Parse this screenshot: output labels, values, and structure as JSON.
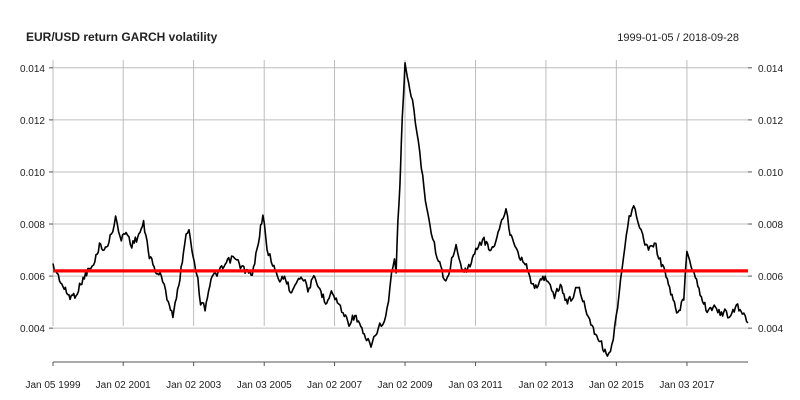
{
  "header": {
    "title": "EUR/USD return GARCH volatility",
    "date_range": "1999-01-05 / 2018-09-28"
  },
  "chart_data": {
    "type": "line",
    "title": "EUR/USD return GARCH volatility",
    "xlabel": "",
    "ylabel": "",
    "x_range": [
      "1999-01-05",
      "2018-09-28"
    ],
    "ylim": [
      0.0027,
      0.0143
    ],
    "grid": true,
    "legend": "none",
    "x_ticks": [
      {
        "date": "1999-01-05",
        "label": "Jan 05 1999"
      },
      {
        "date": "2001-01-02",
        "label": "Jan 02 2001"
      },
      {
        "date": "2003-01-02",
        "label": "Jan 02 2003"
      },
      {
        "date": "2005-01-03",
        "label": "Jan 03 2005"
      },
      {
        "date": "2007-01-02",
        "label": "Jan 02 2007"
      },
      {
        "date": "2009-01-02",
        "label": "Jan 02 2009"
      },
      {
        "date": "2011-01-03",
        "label": "Jan 03 2011"
      },
      {
        "date": "2013-01-02",
        "label": "Jan 02 2013"
      },
      {
        "date": "2015-01-02",
        "label": "Jan 02 2015"
      },
      {
        "date": "2017-01-03",
        "label": "Jan 03 2017"
      }
    ],
    "y_ticks": [
      {
        "value": 0.004,
        "label": "0.004"
      },
      {
        "value": 0.006,
        "label": "0.006"
      },
      {
        "value": 0.008,
        "label": "0.008"
      },
      {
        "value": 0.01,
        "label": "0.010"
      },
      {
        "value": 0.012,
        "label": "0.012"
      },
      {
        "value": 0.014,
        "label": "0.014"
      }
    ],
    "series": [
      {
        "color": "#000000",
        "points": [
          [
            "1999-01-05",
            0.0064
          ],
          [
            "1999-03-01",
            0.006
          ],
          [
            "1999-05-01",
            0.0055
          ],
          [
            "1999-07-01",
            0.0052
          ],
          [
            "1999-09-01",
            0.0053
          ],
          [
            "1999-11-01",
            0.0058
          ],
          [
            "2000-01-01",
            0.0062
          ],
          [
            "2000-03-01",
            0.0064
          ],
          [
            "2000-05-01",
            0.0072
          ],
          [
            "2000-07-01",
            0.007
          ],
          [
            "2000-09-01",
            0.0076
          ],
          [
            "2000-10-15",
            0.0083
          ],
          [
            "2000-12-01",
            0.0074
          ],
          [
            "2001-02-01",
            0.0077
          ],
          [
            "2001-04-01",
            0.0072
          ],
          [
            "2001-06-01",
            0.0075
          ],
          [
            "2001-08-01",
            0.008
          ],
          [
            "2001-10-01",
            0.0068
          ],
          [
            "2001-12-01",
            0.0062
          ],
          [
            "2002-02-01",
            0.006
          ],
          [
            "2002-04-01",
            0.0052
          ],
          [
            "2002-06-01",
            0.0045
          ],
          [
            "2002-08-01",
            0.0056
          ],
          [
            "2002-10-01",
            0.0073
          ],
          [
            "2002-11-15",
            0.0079
          ],
          [
            "2002-12-15",
            0.007
          ],
          [
            "2003-02-01",
            0.0062
          ],
          [
            "2003-03-15",
            0.005
          ],
          [
            "2003-05-01",
            0.0048
          ],
          [
            "2003-07-01",
            0.0059
          ],
          [
            "2003-09-01",
            0.0061
          ],
          [
            "2003-11-01",
            0.0063
          ],
          [
            "2004-01-01",
            0.0066
          ],
          [
            "2004-03-01",
            0.0067
          ],
          [
            "2004-05-01",
            0.0064
          ],
          [
            "2004-07-01",
            0.0062
          ],
          [
            "2004-09-01",
            0.006
          ],
          [
            "2004-11-15",
            0.0076
          ],
          [
            "2004-12-20",
            0.0084
          ],
          [
            "2005-02-01",
            0.007
          ],
          [
            "2005-04-01",
            0.0065
          ],
          [
            "2005-06-01",
            0.0058
          ],
          [
            "2005-08-01",
            0.006
          ],
          [
            "2005-10-01",
            0.0054
          ],
          [
            "2005-12-01",
            0.0058
          ],
          [
            "2006-02-01",
            0.006
          ],
          [
            "2006-04-01",
            0.0055
          ],
          [
            "2006-06-01",
            0.0059
          ],
          [
            "2006-08-01",
            0.0055
          ],
          [
            "2006-10-01",
            0.005
          ],
          [
            "2006-12-01",
            0.0054
          ],
          [
            "2007-02-01",
            0.005
          ],
          [
            "2007-04-01",
            0.0046
          ],
          [
            "2007-06-01",
            0.0042
          ],
          [
            "2007-08-01",
            0.0045
          ],
          [
            "2007-10-01",
            0.004
          ],
          [
            "2007-12-01",
            0.0035
          ],
          [
            "2008-01-15",
            0.0034
          ],
          [
            "2008-03-01",
            0.0037
          ],
          [
            "2008-04-15",
            0.0041
          ],
          [
            "2008-06-01",
            0.0042
          ],
          [
            "2008-07-15",
            0.005
          ],
          [
            "2008-08-15",
            0.006
          ],
          [
            "2008-09-15",
            0.0066
          ],
          [
            "2008-10-01",
            0.0062
          ],
          [
            "2008-10-20",
            0.008
          ],
          [
            "2008-11-10",
            0.0095
          ],
          [
            "2008-11-25",
            0.0112
          ],
          [
            "2008-12-15",
            0.0128
          ],
          [
            "2009-01-02",
            0.0143
          ],
          [
            "2009-01-25",
            0.0136
          ],
          [
            "2009-02-20",
            0.0132
          ],
          [
            "2009-03-20",
            0.0128
          ],
          [
            "2009-04-20",
            0.0118
          ],
          [
            "2009-05-20",
            0.0112
          ],
          [
            "2009-06-20",
            0.0102
          ],
          [
            "2009-08-01",
            0.009
          ],
          [
            "2009-09-15",
            0.008
          ],
          [
            "2009-11-01",
            0.0072
          ],
          [
            "2009-12-15",
            0.0066
          ],
          [
            "2010-02-01",
            0.006
          ],
          [
            "2010-03-15",
            0.0059
          ],
          [
            "2010-05-01",
            0.0066
          ],
          [
            "2010-06-15",
            0.0071
          ],
          [
            "2010-08-01",
            0.0064
          ],
          [
            "2010-10-01",
            0.0062
          ],
          [
            "2010-12-01",
            0.0066
          ],
          [
            "2011-02-01",
            0.0072
          ],
          [
            "2011-04-01",
            0.0074
          ],
          [
            "2011-06-01",
            0.007
          ],
          [
            "2011-08-01",
            0.0073
          ],
          [
            "2011-10-01",
            0.0081
          ],
          [
            "2011-11-15",
            0.0086
          ],
          [
            "2011-12-15",
            0.0078
          ],
          [
            "2012-02-01",
            0.0074
          ],
          [
            "2012-04-01",
            0.0068
          ],
          [
            "2012-06-01",
            0.0065
          ],
          [
            "2012-08-01",
            0.0058
          ],
          [
            "2012-10-01",
            0.0055
          ],
          [
            "2012-12-01",
            0.006
          ],
          [
            "2013-02-01",
            0.0058
          ],
          [
            "2013-04-01",
            0.0052
          ],
          [
            "2013-06-01",
            0.0057
          ],
          [
            "2013-08-01",
            0.005
          ],
          [
            "2013-10-01",
            0.0052
          ],
          [
            "2013-12-01",
            0.0056
          ],
          [
            "2014-02-01",
            0.005
          ],
          [
            "2014-04-01",
            0.0043
          ],
          [
            "2014-06-01",
            0.0038
          ],
          [
            "2014-08-01",
            0.0034
          ],
          [
            "2014-10-01",
            0.0029
          ],
          [
            "2014-11-01",
            0.0032
          ],
          [
            "2014-12-01",
            0.0036
          ],
          [
            "2015-01-15",
            0.0048
          ],
          [
            "2015-02-15",
            0.0058
          ],
          [
            "2015-03-15",
            0.0066
          ],
          [
            "2015-04-15",
            0.0075
          ],
          [
            "2015-05-15",
            0.0082
          ],
          [
            "2015-07-01",
            0.0086
          ],
          [
            "2015-08-15",
            0.0082
          ],
          [
            "2015-10-01",
            0.0075
          ],
          [
            "2015-12-01",
            0.007
          ],
          [
            "2016-02-01",
            0.0073
          ],
          [
            "2016-04-01",
            0.0066
          ],
          [
            "2016-06-01",
            0.006
          ],
          [
            "2016-08-01",
            0.0052
          ],
          [
            "2016-10-01",
            0.0045
          ],
          [
            "2016-12-01",
            0.0052
          ],
          [
            "2017-01-03",
            0.007
          ],
          [
            "2017-02-01",
            0.0066
          ],
          [
            "2017-04-01",
            0.006
          ],
          [
            "2017-06-01",
            0.0052
          ],
          [
            "2017-08-01",
            0.0047
          ],
          [
            "2017-10-01",
            0.0048
          ],
          [
            "2017-12-01",
            0.0046
          ],
          [
            "2018-02-01",
            0.0046
          ],
          [
            "2018-04-01",
            0.0044
          ],
          [
            "2018-06-01",
            0.0049
          ],
          [
            "2018-08-01",
            0.0046
          ],
          [
            "2018-09-28",
            0.0042
          ]
        ]
      },
      {
        "color": "#ff0000",
        "points": [
          [
            "1999-01-05",
            0.0062
          ],
          [
            "2018-09-28",
            0.0062
          ]
        ]
      }
    ]
  }
}
